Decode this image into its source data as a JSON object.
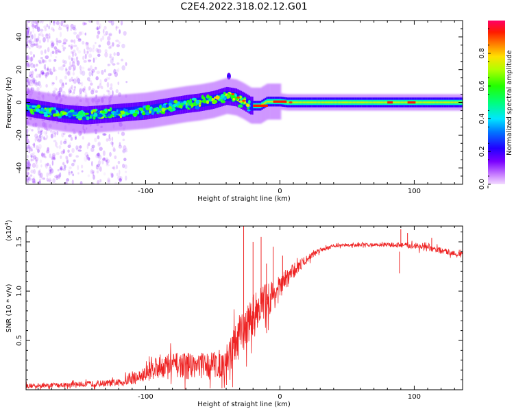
{
  "title": "C2E4.2022.318.02.12.G01",
  "chart_data": [
    {
      "type": "heatmap",
      "name": "spectrogram",
      "xlabel": "Height of straight line (km)",
      "ylabel": "Frequency (Hz)",
      "xlim": [
        -189,
        136
      ],
      "ylim": [
        -50,
        50
      ],
      "xticks": [
        -100,
        0,
        100
      ],
      "xtick_labels": [
        "-100",
        "0",
        "100"
      ],
      "yticks": [
        -40,
        -20,
        0,
        20,
        40
      ],
      "ytick_labels": [
        "-40",
        "-20",
        "0",
        "20",
        "40"
      ],
      "colorbar": {
        "label": "Normalized spectral amplitude",
        "ticks": [
          0.0,
          0.2,
          0.4,
          0.6,
          0.8
        ],
        "tick_labels": [
          "0.0",
          "0.2",
          "0.4",
          "0.6",
          "0.8"
        ],
        "range": [
          0,
          1
        ]
      },
      "signal_track": {
        "height_km": [
          -189,
          -175,
          -160,
          -145,
          -130,
          -115,
          -100,
          -85,
          -70,
          -60,
          -50,
          -40,
          -33,
          -28,
          -22,
          -15,
          -10,
          -5,
          0,
          5,
          10,
          20,
          40,
          60,
          80,
          100,
          120,
          136
        ],
        "frequency_hz": [
          -3,
          -5,
          -7,
          -8,
          -7,
          -6,
          -5,
          -3,
          -1,
          0,
          1.5,
          4,
          3,
          1,
          -2,
          -2,
          0.5,
          0.5,
          0.5,
          0,
          0,
          0,
          0,
          0,
          0,
          0,
          0,
          0
        ]
      }
    },
    {
      "type": "line",
      "name": "snr",
      "xlabel": "Height of straight line (km)",
      "ylabel": "SNR (10 * v/v)",
      "scale_label": "(x10",
      "scale_exp": "4",
      "scale_close": ")",
      "xlim": [
        -189,
        136
      ],
      "ylim": [
        0,
        16600
      ],
      "xticks": [
        -100,
        0,
        100
      ],
      "xtick_labels": [
        "-100",
        "0",
        "100"
      ],
      "yticks": [
        5000,
        10000,
        15000
      ],
      "ytick_labels": [
        "0.5",
        "1.0",
        "1.5"
      ],
      "color": "#ee2222",
      "series": {
        "height_km": [
          -189,
          -160,
          -120,
          -100,
          -95,
          -80,
          -60,
          -45,
          -40,
          -35,
          -30,
          -25,
          -20,
          -15,
          -10,
          -5,
          0,
          5,
          10,
          15,
          20,
          25,
          30,
          40,
          60,
          80,
          100,
          120,
          136
        ],
        "snr_mean": [
          400,
          500,
          700,
          1500,
          2300,
          2500,
          2500,
          2600,
          3000,
          4200,
          5200,
          6400,
          7600,
          8600,
          9100,
          9600,
          10300,
          11300,
          12000,
          12700,
          13200,
          13800,
          14200,
          14600,
          14700,
          14700,
          14600,
          14100,
          13700
        ],
        "noise_amp": [
          300,
          300,
          450,
          1000,
          1500,
          1600,
          1600,
          1800,
          2200,
          2500,
          2600,
          2600,
          2600,
          2400,
          2200,
          2000,
          1600,
          1300,
          1000,
          800,
          500,
          400,
          300,
          200,
          200,
          250,
          400,
          400,
          300
        ],
        "spikes": [
          {
            "x": -27,
            "y": 16600
          },
          {
            "x": -20,
            "y": 15000
          },
          {
            "x": -14,
            "y": 15500
          },
          {
            "x": -10,
            "y": 12800
          },
          {
            "x": -5,
            "y": 14500
          },
          {
            "x": 2,
            "y": 13600
          },
          {
            "x": 90,
            "y": 16300
          },
          {
            "x": 95,
            "y": 15900
          },
          {
            "x": 113,
            "y": 15400
          }
        ]
      }
    }
  ]
}
